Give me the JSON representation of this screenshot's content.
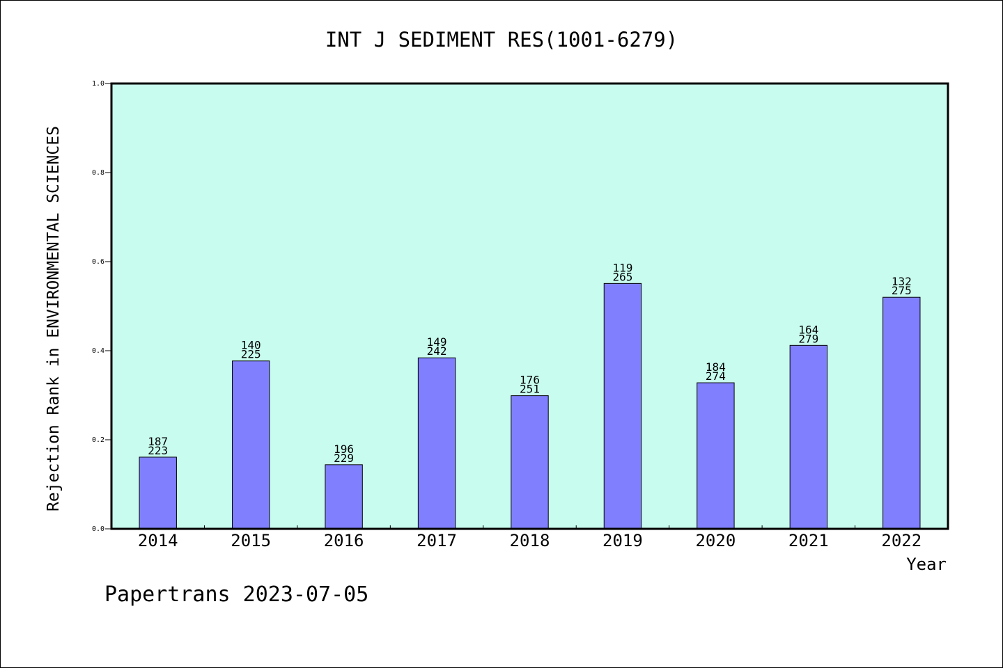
{
  "chart_data": {
    "type": "bar",
    "title": "INT J SEDIMENT RES(1001-6279)",
    "xlabel": "Year",
    "ylabel": "Rejection Rank in ENVIRONMENTAL SCIENCES",
    "ylim": [
      0,
      1.0
    ],
    "yticks": [
      "0.0",
      "0.2",
      "0.4",
      "0.6",
      "0.8",
      "1.0"
    ],
    "categories": [
      "2014",
      "2015",
      "2016",
      "2017",
      "2018",
      "2019",
      "2020",
      "2021",
      "2022"
    ],
    "values": [
      0.161,
      0.377,
      0.144,
      0.384,
      0.299,
      0.551,
      0.328,
      0.412,
      0.52
    ],
    "labels_top": [
      "187",
      "140",
      "196",
      "149",
      "176",
      "119",
      "184",
      "164",
      "132"
    ],
    "labels_bottom": [
      "223",
      "225",
      "229",
      "242",
      "251",
      "265",
      "274",
      "279",
      "275"
    ],
    "grid": false,
    "colors": {
      "plot_bg": "#c8fcee",
      "bar": "#8080ff"
    }
  },
  "footer": "Papertrans 2023-07-05"
}
